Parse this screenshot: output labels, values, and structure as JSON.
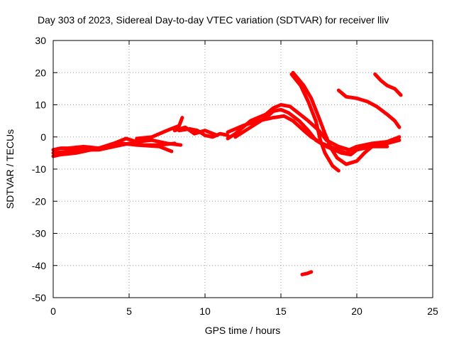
{
  "chart_data": {
    "type": "line",
    "title": "Day 303 of 2023, Sidereal Day-to-day VTEC variation (SDTVAR) for receiver lliv",
    "xlabel": "GPS time / hours",
    "ylabel": "SDTVAR / TECUs",
    "xlim": [
      0,
      25
    ],
    "ylim": [
      -50,
      30
    ],
    "xticks": [
      0,
      5,
      10,
      15,
      20,
      25
    ],
    "yticks": [
      30,
      20,
      10,
      0,
      -10,
      -20,
      -30,
      -40,
      -50
    ],
    "grid": true,
    "color": "#ff0000",
    "series": [
      {
        "name": "track-1",
        "points": [
          [
            0,
            -4
          ],
          [
            0.5,
            -3.5
          ],
          [
            1,
            -3.5
          ],
          [
            2,
            -3
          ],
          [
            3,
            -3.5
          ],
          [
            4,
            -2
          ],
          [
            4.8,
            -0.5
          ],
          [
            5.5,
            -1.5
          ],
          [
            6.5,
            -1
          ],
          [
            7.5,
            -2
          ],
          [
            8.4,
            -2.5
          ]
        ]
      },
      {
        "name": "track-2",
        "points": [
          [
            0,
            -5
          ],
          [
            1,
            -4.5
          ],
          [
            2,
            -4
          ],
          [
            3,
            -4
          ],
          [
            4,
            -3
          ],
          [
            5,
            -2
          ],
          [
            6,
            -2.5
          ],
          [
            7,
            -2.5
          ],
          [
            8,
            -2
          ]
        ]
      },
      {
        "name": "track-3",
        "points": [
          [
            0,
            -6
          ],
          [
            0.5,
            -5.5
          ],
          [
            1.5,
            -5
          ],
          [
            2.5,
            -4
          ],
          [
            3.5,
            -3
          ],
          [
            4.5,
            -2
          ],
          [
            5.5,
            -2.5
          ],
          [
            7,
            -3
          ],
          [
            7.8,
            -4.5
          ]
        ]
      },
      {
        "name": "track-4",
        "points": [
          [
            5.5,
            -0.5
          ],
          [
            6.5,
            0
          ],
          [
            7.5,
            2
          ],
          [
            8.3,
            3.5
          ],
          [
            8.5,
            6
          ]
        ]
      },
      {
        "name": "track-5",
        "points": [
          [
            8.3,
            2
          ],
          [
            9,
            2.5
          ],
          [
            9.5,
            2
          ],
          [
            10,
            0.5
          ],
          [
            10.5,
            0
          ],
          [
            11,
            1
          ],
          [
            11.5,
            0.5
          ]
        ]
      },
      {
        "name": "track-6",
        "points": [
          [
            8,
            2
          ],
          [
            8.7,
            3
          ],
          [
            9.3,
            1
          ],
          [
            10,
            2
          ],
          [
            10.8,
            0.5
          ]
        ]
      },
      {
        "name": "track-7",
        "points": [
          [
            11.5,
            -0.5
          ],
          [
            12,
            1
          ],
          [
            12.5,
            3
          ],
          [
            13,
            5
          ],
          [
            13.5,
            6
          ],
          [
            14,
            7
          ],
          [
            14.5,
            9
          ],
          [
            15,
            10
          ],
          [
            15.6,
            9.5
          ],
          [
            16,
            8
          ],
          [
            16.8,
            5
          ],
          [
            17.5,
            2
          ],
          [
            18,
            -1
          ],
          [
            18.8,
            -3
          ],
          [
            19.5,
            -4
          ],
          [
            20,
            -3
          ]
        ]
      },
      {
        "name": "track-8",
        "points": [
          [
            12,
            0
          ],
          [
            13,
            3
          ],
          [
            14,
            6
          ],
          [
            14.5,
            8
          ],
          [
            15,
            8.5
          ],
          [
            15.5,
            7.5
          ],
          [
            16.2,
            5
          ],
          [
            16.8,
            2
          ],
          [
            17.3,
            -1
          ],
          [
            18,
            -3
          ],
          [
            19,
            -5
          ],
          [
            19.6,
            -5.5
          ],
          [
            20,
            -4
          ],
          [
            21,
            -3
          ],
          [
            22,
            -3
          ]
        ]
      },
      {
        "name": "track-9",
        "points": [
          [
            11.5,
            1.5
          ],
          [
            12.5,
            3.5
          ],
          [
            13.5,
            5
          ],
          [
            14.5,
            6
          ],
          [
            15.2,
            6.5
          ],
          [
            15.8,
            5
          ],
          [
            16.5,
            2
          ],
          [
            17,
            0
          ],
          [
            17.7,
            -2
          ],
          [
            18.5,
            -3.5
          ],
          [
            19.3,
            -5
          ],
          [
            20,
            -3
          ],
          [
            21,
            -2
          ],
          [
            22,
            -1.5
          ],
          [
            22.8,
            0
          ]
        ]
      },
      {
        "name": "track-10",
        "points": [
          [
            15.8,
            20
          ],
          [
            16.5,
            16
          ],
          [
            17,
            12
          ],
          [
            17.5,
            6
          ],
          [
            17.9,
            1
          ],
          [
            18.3,
            -3.5
          ],
          [
            18.7,
            -6.5
          ],
          [
            19.3,
            -8.5
          ],
          [
            20,
            -7.5
          ],
          [
            20.5,
            -5
          ],
          [
            21,
            -3
          ],
          [
            22,
            -2
          ],
          [
            22.8,
            -1
          ]
        ]
      },
      {
        "name": "track-11",
        "points": [
          [
            15.7,
            19.5
          ],
          [
            16.3,
            16
          ],
          [
            16.8,
            11
          ],
          [
            17.3,
            5
          ],
          [
            17.6,
            -1
          ],
          [
            17.9,
            -5
          ],
          [
            18.4,
            -9
          ],
          [
            18.8,
            -10.5
          ]
        ]
      },
      {
        "name": "track-12",
        "points": [
          [
            18.8,
            14.5
          ],
          [
            19.3,
            12.5
          ],
          [
            20,
            12
          ],
          [
            20.7,
            11
          ],
          [
            21.3,
            9.5
          ],
          [
            22,
            7
          ],
          [
            22.5,
            5
          ],
          [
            22.8,
            3
          ]
        ]
      },
      {
        "name": "track-13",
        "points": [
          [
            21.2,
            19.5
          ],
          [
            21.6,
            17.5
          ],
          [
            22,
            16
          ],
          [
            22.5,
            15
          ],
          [
            22.9,
            13
          ]
        ]
      },
      {
        "name": "track-14",
        "points": [
          [
            16.4,
            -42.8
          ],
          [
            16.7,
            -42.5
          ],
          [
            17,
            -42
          ]
        ]
      }
    ]
  }
}
